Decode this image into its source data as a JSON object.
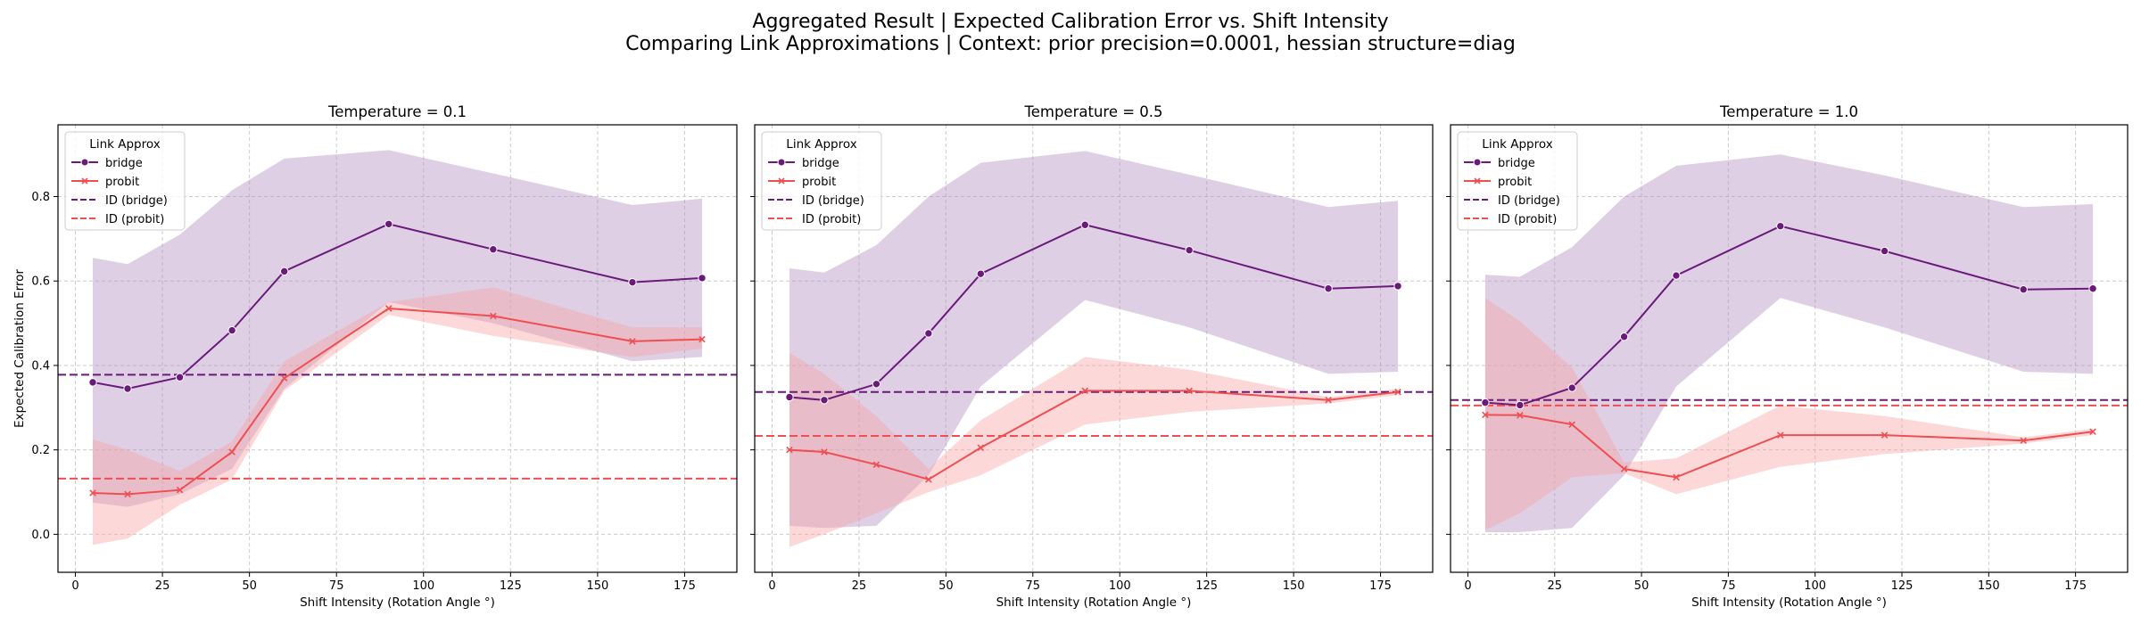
{
  "figure": {
    "title_line1": "Aggregated Result | Expected Calibration Error vs. Shift Intensity",
    "title_line2": "Comparing Link Approximations | Context: prior precision=0.0001, hessian structure=diag"
  },
  "colors": {
    "bridge": "#6a1b7a",
    "probit": "#ef4e52",
    "bridge_band": "#b38cc0",
    "probit_band": "#f7a1a3",
    "grid": "#cccccc"
  },
  "chart_data": [
    {
      "type": "line",
      "title": "Temperature = 0.1",
      "xlabel": "Shift Intensity (Rotation Angle °)",
      "ylabel": "Expected Calibration Error",
      "xlim": [
        -5,
        190
      ],
      "ylim": [
        -0.09,
        0.97
      ],
      "xticks": [
        0,
        25,
        50,
        75,
        100,
        125,
        150,
        175
      ],
      "yticks": [
        0.0,
        0.2,
        0.4,
        0.6,
        0.8
      ],
      "grid": true,
      "legend": {
        "title": "Link Approx",
        "placement": "top-left",
        "entries": [
          "bridge",
          "probit",
          "ID (bridge)",
          "ID (probit)"
        ]
      },
      "x": [
        5,
        15,
        30,
        45,
        60,
        90,
        120,
        160,
        180
      ],
      "series": [
        {
          "name": "bridge",
          "marker": "circle",
          "values": [
            0.36,
            0.345,
            0.372,
            0.483,
            0.623,
            0.735,
            0.675,
            0.597,
            0.607
          ],
          "lower": [
            0.075,
            0.065,
            0.095,
            0.155,
            0.345,
            0.55,
            0.5,
            0.41,
            0.42
          ],
          "upper": [
            0.655,
            0.64,
            0.71,
            0.815,
            0.89,
            0.91,
            0.855,
            0.78,
            0.795
          ]
        },
        {
          "name": "probit",
          "marker": "x",
          "values": [
            0.098,
            0.095,
            0.105,
            0.195,
            0.37,
            0.535,
            0.517,
            0.457,
            0.462
          ],
          "lower": [
            -0.025,
            -0.01,
            0.07,
            0.13,
            0.34,
            0.52,
            0.47,
            0.42,
            0.44
          ],
          "upper": [
            0.225,
            0.2,
            0.15,
            0.22,
            0.41,
            0.55,
            0.585,
            0.49,
            0.49
          ]
        }
      ],
      "id_lines": [
        {
          "name": "ID (bridge)",
          "y": 0.378
        },
        {
          "name": "ID (probit)",
          "y": 0.132
        }
      ]
    },
    {
      "type": "line",
      "title": "Temperature = 0.5",
      "xlabel": "Shift Intensity (Rotation Angle °)",
      "ylabel": "",
      "xlim": [
        -5,
        190
      ],
      "ylim": [
        -0.09,
        0.97
      ],
      "xticks": [
        0,
        25,
        50,
        75,
        100,
        125,
        150,
        175
      ],
      "yticks": [
        0.0,
        0.2,
        0.4,
        0.6,
        0.8
      ],
      "grid": true,
      "legend": {
        "title": "Link Approx",
        "placement": "top-left",
        "entries": [
          "bridge",
          "probit",
          "ID (bridge)",
          "ID (probit)"
        ]
      },
      "x": [
        5,
        15,
        30,
        45,
        60,
        90,
        120,
        160,
        180
      ],
      "series": [
        {
          "name": "bridge",
          "marker": "circle",
          "values": [
            0.325,
            0.318,
            0.356,
            0.476,
            0.617,
            0.733,
            0.673,
            0.582,
            0.588
          ],
          "lower": [
            0.02,
            0.015,
            0.02,
            0.14,
            0.35,
            0.555,
            0.49,
            0.38,
            0.385
          ],
          "upper": [
            0.63,
            0.62,
            0.685,
            0.8,
            0.88,
            0.908,
            0.852,
            0.775,
            0.79
          ]
        },
        {
          "name": "probit",
          "marker": "x",
          "values": [
            0.2,
            0.195,
            0.165,
            0.13,
            0.205,
            0.34,
            0.34,
            0.318,
            0.337
          ],
          "lower": [
            -0.03,
            0.0,
            0.05,
            0.1,
            0.14,
            0.26,
            0.29,
            0.31,
            0.33
          ],
          "upper": [
            0.43,
            0.38,
            0.28,
            0.155,
            0.27,
            0.42,
            0.39,
            0.325,
            0.345
          ]
        }
      ],
      "id_lines": [
        {
          "name": "ID (bridge)",
          "y": 0.337
        },
        {
          "name": "ID (probit)",
          "y": 0.233
        }
      ]
    },
    {
      "type": "line",
      "title": "Temperature = 1.0",
      "xlabel": "Shift Intensity (Rotation Angle °)",
      "ylabel": "",
      "xlim": [
        -5,
        190
      ],
      "ylim": [
        -0.09,
        0.97
      ],
      "xticks": [
        0,
        25,
        50,
        75,
        100,
        125,
        150,
        175
      ],
      "yticks": [
        0.0,
        0.2,
        0.4,
        0.6,
        0.8
      ],
      "grid": true,
      "legend": {
        "title": "Link Approx",
        "placement": "top-left",
        "entries": [
          "bridge",
          "probit",
          "ID (bridge)",
          "ID (probit)"
        ]
      },
      "x": [
        5,
        15,
        30,
        45,
        60,
        90,
        120,
        160,
        180
      ],
      "series": [
        {
          "name": "bridge",
          "marker": "circle",
          "values": [
            0.312,
            0.306,
            0.347,
            0.468,
            0.613,
            0.73,
            0.671,
            0.58,
            0.582
          ],
          "lower": [
            0.005,
            0.005,
            0.015,
            0.14,
            0.35,
            0.56,
            0.49,
            0.385,
            0.38
          ],
          "upper": [
            0.615,
            0.61,
            0.68,
            0.8,
            0.873,
            0.9,
            0.85,
            0.775,
            0.782
          ]
        },
        {
          "name": "probit",
          "marker": "x",
          "values": [
            0.283,
            0.282,
            0.26,
            0.155,
            0.135,
            0.235,
            0.235,
            0.222,
            0.243
          ],
          "lower": [
            0.01,
            0.05,
            0.135,
            0.145,
            0.095,
            0.16,
            0.19,
            0.215,
            0.235
          ],
          "upper": [
            0.56,
            0.505,
            0.395,
            0.17,
            0.18,
            0.305,
            0.28,
            0.23,
            0.25
          ]
        }
      ],
      "id_lines": [
        {
          "name": "ID (bridge)",
          "y": 0.318
        },
        {
          "name": "ID (probit)",
          "y": 0.305
        }
      ]
    }
  ]
}
